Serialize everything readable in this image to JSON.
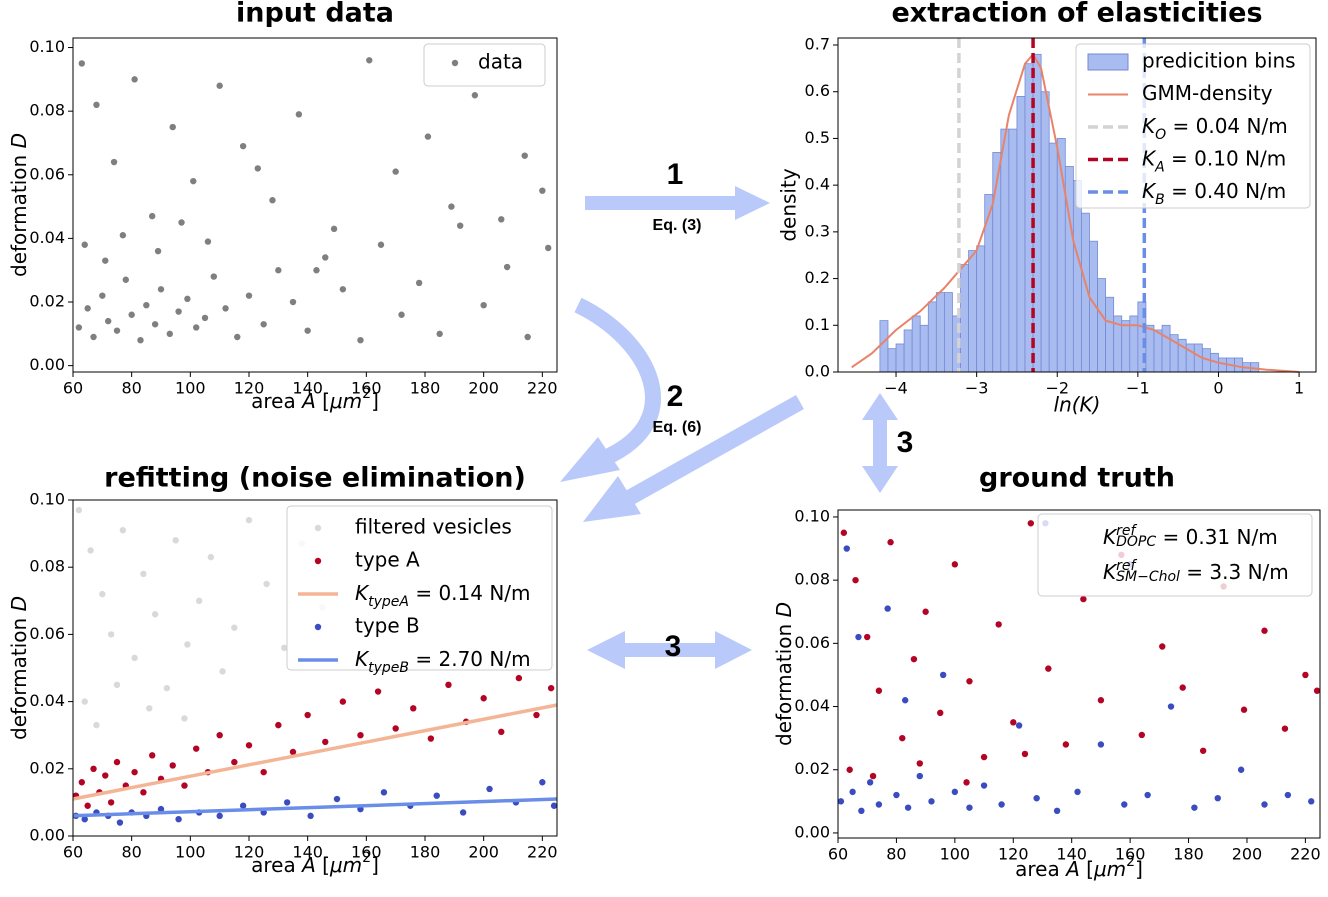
{
  "chart_data": [
    {
      "type": "scatter",
      "title": "input data",
      "xlabel": [
        "area ",
        "A",
        " [",
        "μm",
        "2",
        "]"
      ],
      "ylabel": [
        "deformation ",
        "D"
      ],
      "xlim": [
        60,
        225
      ],
      "ylim": [
        -0.002,
        0.103
      ],
      "xticks": [
        60,
        80,
        100,
        120,
        140,
        160,
        180,
        200,
        220
      ],
      "yticks": [
        {
          "value": 0,
          "label": "0.00"
        },
        {
          "value": 0.02,
          "label": "0.02"
        },
        {
          "value": 0.04,
          "label": "0.04"
        },
        {
          "value": 0.06,
          "label": "0.06"
        },
        {
          "value": 0.08,
          "label": "0.08"
        },
        {
          "value": 0.1,
          "label": "0.10"
        }
      ],
      "series": [
        {
          "name": "data",
          "color": "#7f7f7f",
          "mode": "markers",
          "x": [
            62,
            65,
            67,
            70,
            72,
            75,
            78,
            80,
            83,
            85,
            88,
            90,
            93,
            96,
            99,
            102,
            105,
            108,
            112,
            116,
            120,
            125,
            130,
            135,
            140,
            146,
            152,
            158,
            165,
            172,
            178,
            185,
            192,
            200,
            208,
            215,
            222,
            63,
            68,
            74,
            81,
            87,
            94,
            101,
            110,
            118,
            128,
            137,
            149,
            161,
            170,
            181,
            189,
            197,
            206,
            214,
            220,
            64,
            71,
            77,
            89,
            97,
            106,
            123,
            143
          ],
          "y": [
            0.012,
            0.018,
            0.009,
            0.022,
            0.014,
            0.011,
            0.027,
            0.016,
            0.008,
            0.019,
            0.013,
            0.024,
            0.01,
            0.017,
            0.021,
            0.012,
            0.015,
            0.028,
            0.018,
            0.009,
            0.022,
            0.013,
            0.03,
            0.02,
            0.011,
            0.034,
            0.024,
            0.008,
            0.038,
            0.016,
            0.026,
            0.01,
            0.044,
            0.019,
            0.031,
            0.009,
            0.037,
            0.095,
            0.082,
            0.064,
            0.09,
            0.047,
            0.075,
            0.058,
            0.088,
            0.069,
            0.052,
            0.079,
            0.043,
            0.096,
            0.061,
            0.072,
            0.05,
            0.085,
            0.046,
            0.066,
            0.055,
            0.038,
            0.033,
            0.041,
            0.036,
            0.045,
            0.039,
            0.062,
            0.03
          ]
        }
      ]
    },
    {
      "type": "histogram",
      "title": "extraction of elasticities",
      "xlabel": "ln(K)",
      "ylabel": "density",
      "xlim": [
        -4.72,
        1.21
      ],
      "ylim": [
        0,
        0.715
      ],
      "xticks": [
        {
          "value": -4,
          "label": "−4"
        },
        {
          "value": -3,
          "label": "−3"
        },
        {
          "value": -2,
          "label": "−2"
        },
        {
          "value": -1,
          "label": "−1"
        },
        0,
        1
      ],
      "yticks": [
        {
          "value": 0,
          "label": "0.0"
        },
        0.1,
        0.2,
        0.3,
        0.4,
        0.5,
        0.6,
        0.7
      ],
      "bins_name": "predicition bins",
      "color": "#a9bcf0",
      "edgecolor": "#7489d6",
      "bins": [
        -4.2,
        -4.1,
        -4.0,
        -3.9,
        -3.8,
        -3.7,
        -3.6,
        -3.5,
        -3.4,
        -3.3,
        -3.2,
        -3.1,
        -3.0,
        -2.9,
        -2.8,
        -2.7,
        -2.6,
        -2.5,
        -2.4,
        -2.3,
        -2.2,
        -2.1,
        -2.0,
        -1.9,
        -1.8,
        -1.7,
        -1.6,
        -1.5,
        -1.4,
        -1.3,
        -1.2,
        -1.1,
        -1.0,
        -0.9,
        -0.8,
        -0.7,
        -0.6,
        -0.5,
        -0.4,
        -0.3,
        -0.2,
        -0.1,
        0.0,
        0.1,
        0.2,
        0.3,
        0.4,
        0.5
      ],
      "counts": [
        0.11,
        0.05,
        0.06,
        0.09,
        0.12,
        0.1,
        0.15,
        0.17,
        0.17,
        0.12,
        0.23,
        0.26,
        0.27,
        0.38,
        0.47,
        0.52,
        0.52,
        0.59,
        0.66,
        0.68,
        0.6,
        0.49,
        0.5,
        0.44,
        0.41,
        0.34,
        0.28,
        0.2,
        0.16,
        0.12,
        0.11,
        0.12,
        0.15,
        0.1,
        0.09,
        0.1,
        0.08,
        0.07,
        0.06,
        0.06,
        0.05,
        0.04,
        0.03,
        0.03,
        0.03,
        0.02,
        0.02
      ],
      "lines": [
        {
          "name": "GMM-density",
          "color": "#e8836a",
          "x": [
            -4.55,
            -4.3,
            -4.0,
            -3.7,
            -3.4,
            -3.2,
            -3.0,
            -2.8,
            -2.6,
            -2.4,
            -2.3,
            -2.2,
            -2.0,
            -1.8,
            -1.6,
            -1.4,
            -1.2,
            -1.0,
            -0.8,
            -0.6,
            -0.4,
            -0.2,
            0,
            0.3,
            0.6,
            1.0
          ],
          "y": [
            0.01,
            0.04,
            0.09,
            0.13,
            0.18,
            0.22,
            0.26,
            0.36,
            0.55,
            0.66,
            0.68,
            0.65,
            0.48,
            0.28,
            0.16,
            0.11,
            0.1,
            0.1,
            0.09,
            0.07,
            0.05,
            0.03,
            0.02,
            0.01,
            0.005,
            0
          ]
        }
      ],
      "vlines": [
        {
          "x": -3.22,
          "color": "#d3d3d3",
          "name": [
            "K",
            "O",
            " = 0.04 N/m"
          ]
        },
        {
          "x": -2.3,
          "color": "#b40426",
          "name": [
            "K",
            "A",
            " = 0.10 N/m"
          ]
        },
        {
          "x": -0.92,
          "color": "#6a8ee8",
          "name": [
            "K",
            "B",
            " = 0.40 N/m"
          ]
        }
      ]
    },
    {
      "type": "scatter",
      "title": "refitting (noise elimination)",
      "xlabel": [
        "area ",
        "A",
        " [",
        "μm",
        "2",
        "]"
      ],
      "ylabel": [
        "deformation ",
        "D"
      ],
      "xlim": [
        60,
        225
      ],
      "ylim": [
        0,
        0.1
      ],
      "xticks": [
        60,
        80,
        100,
        120,
        140,
        160,
        180,
        200,
        220
      ],
      "yticks": [
        {
          "value": 0,
          "label": "0.00"
        },
        {
          "value": 0.02,
          "label": "0.02"
        },
        {
          "value": 0.04,
          "label": "0.04"
        },
        {
          "value": 0.06,
          "label": "0.06"
        },
        {
          "value": 0.08,
          "label": "0.08"
        },
        {
          "value": 0.1,
          "label": "0.10"
        }
      ],
      "series": [
        {
          "name": "filtered vesicles",
          "color": "#d9d9d9",
          "mode": "markers",
          "x": [
            62,
            66,
            70,
            73,
            77,
            81,
            84,
            88,
            92,
            95,
            99,
            103,
            107,
            111,
            115,
            120,
            126,
            132,
            138,
            145,
            64,
            68,
            75,
            86,
            98
          ],
          "y": [
            0.097,
            0.085,
            0.072,
            0.06,
            0.091,
            0.053,
            0.078,
            0.066,
            0.044,
            0.088,
            0.057,
            0.07,
            0.083,
            0.049,
            0.062,
            0.094,
            0.075,
            0.056,
            0.087,
            0.068,
            0.04,
            0.033,
            0.045,
            0.038,
            0.035
          ]
        },
        {
          "name": "type A",
          "color": "#b40426",
          "mode": "markers",
          "x": [
            61,
            63,
            65,
            67,
            69,
            71,
            73,
            75,
            78,
            81,
            84,
            87,
            90,
            94,
            98,
            102,
            106,
            110,
            115,
            120,
            125,
            130,
            135,
            140,
            146,
            152,
            158,
            164,
            170,
            176,
            182,
            188,
            194,
            200,
            206,
            212,
            218,
            223
          ],
          "y": [
            0.012,
            0.016,
            0.009,
            0.02,
            0.013,
            0.018,
            0.01,
            0.022,
            0.015,
            0.019,
            0.013,
            0.024,
            0.017,
            0.021,
            0.015,
            0.026,
            0.019,
            0.03,
            0.022,
            0.027,
            0.019,
            0.033,
            0.025,
            0.036,
            0.028,
            0.04,
            0.03,
            0.043,
            0.032,
            0.038,
            0.029,
            0.045,
            0.034,
            0.041,
            0.031,
            0.047,
            0.036,
            0.044
          ]
        },
        {
          "name": [
            "K",
            "typeA",
            " = 0.14 N/m"
          ],
          "color": "#f4b596",
          "mode": "line",
          "x": [
            60,
            225
          ],
          "y": [
            0.011,
            0.039
          ]
        },
        {
          "name": "type B",
          "color": "#3b4cc0",
          "mode": "markers",
          "x": [
            61,
            64,
            68,
            72,
            76,
            80,
            85,
            90,
            96,
            103,
            110,
            118,
            125,
            133,
            141,
            150,
            158,
            166,
            175,
            184,
            193,
            202,
            211,
            220,
            224
          ],
          "y": [
            0.006,
            0.005,
            0.007,
            0.006,
            0.004,
            0.007,
            0.006,
            0.008,
            0.005,
            0.007,
            0.006,
            0.009,
            0.007,
            0.01,
            0.006,
            0.011,
            0.008,
            0.013,
            0.009,
            0.012,
            0.007,
            0.014,
            0.01,
            0.016,
            0.009
          ]
        },
        {
          "name": [
            "K",
            "typeB",
            " = 2.70 N/m"
          ],
          "color": "#6a8ee8",
          "mode": "line",
          "x": [
            60,
            225
          ],
          "y": [
            0.006,
            0.011
          ]
        }
      ]
    },
    {
      "type": "scatter",
      "title": "ground truth",
      "xlabel": [
        "area ",
        "A",
        " [",
        "μm",
        "2",
        "]"
      ],
      "ylabel": [
        "deformation ",
        "D"
      ],
      "xlim": [
        60,
        225
      ],
      "ylim": [
        -0.0016,
        0.1022
      ],
      "xticks": [
        60,
        80,
        100,
        120,
        140,
        160,
        180,
        200,
        220
      ],
      "yticks": [
        {
          "value": 0,
          "label": "0.00"
        },
        {
          "value": 0.02,
          "label": "0.02"
        },
        {
          "value": 0.04,
          "label": "0.04"
        },
        {
          "value": 0.06,
          "label": "0.06"
        },
        {
          "value": 0.08,
          "label": "0.08"
        },
        {
          "value": 0.1,
          "label": "0.10"
        }
      ],
      "annotations": [
        [
          "K",
          "ref",
          "DOPC",
          " = 0.31 N/m"
        ],
        [
          "K",
          "ref",
          "SM−Chol",
          " = 3.3 N/m"
        ]
      ],
      "series": [
        {
          "color": "#b40426",
          "mode": "markers",
          "x": [
            62,
            66,
            70,
            74,
            78,
            82,
            86,
            90,
            95,
            100,
            105,
            110,
            115,
            120,
            126,
            132,
            138,
            144,
            150,
            157,
            164,
            171,
            178,
            185,
            192,
            199,
            206,
            213,
            220,
            224,
            64,
            72,
            88,
            104,
            124
          ],
          "y": [
            0.095,
            0.08,
            0.062,
            0.045,
            0.092,
            0.03,
            0.055,
            0.07,
            0.038,
            0.085,
            0.048,
            0.024,
            0.066,
            0.035,
            0.098,
            0.052,
            0.028,
            0.074,
            0.042,
            0.088,
            0.031,
            0.059,
            0.046,
            0.026,
            0.078,
            0.039,
            0.064,
            0.033,
            0.05,
            0.045,
            0.02,
            0.018,
            0.022,
            0.016,
            0.025
          ]
        },
        {
          "color": "#3b4cc0",
          "mode": "markers",
          "x": [
            61,
            63,
            65,
            68,
            71,
            74,
            77,
            80,
            84,
            88,
            92,
            96,
            100,
            105,
            110,
            116,
            122,
            128,
            135,
            142,
            150,
            158,
            166,
            174,
            182,
            190,
            198,
            206,
            214,
            222,
            67,
            83,
            131,
            160
          ],
          "y": [
            0.01,
            0.09,
            0.013,
            0.007,
            0.016,
            0.009,
            0.071,
            0.012,
            0.008,
            0.018,
            0.01,
            0.05,
            0.013,
            0.008,
            0.015,
            0.009,
            0.034,
            0.011,
            0.007,
            0.013,
            0.028,
            0.009,
            0.012,
            0.04,
            0.008,
            0.011,
            0.02,
            0.009,
            0.012,
            0.01,
            0.062,
            0.042,
            0.098,
            0.085
          ]
        }
      ]
    }
  ],
  "arrow_labels": [
    "1",
    "Eq. (3)",
    "2",
    "Eq. (6)",
    "3",
    "3"
  ]
}
